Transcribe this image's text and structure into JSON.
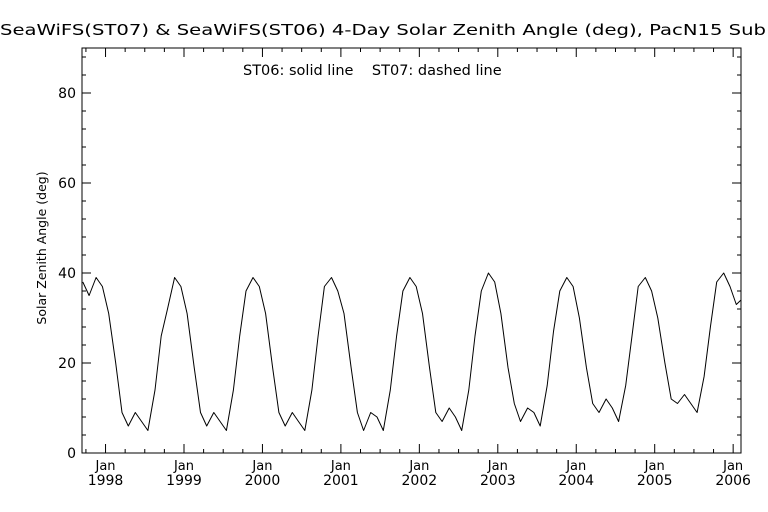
{
  "chart_data": {
    "type": "line",
    "title": "SeaWiFS(ST07) & SeaWiFS(ST06) 4-Day Solar Zenith Angle (deg), PacN15 Sub",
    "annotation": "ST06: solid line    ST07: dashed line",
    "xlabel": "",
    "ylabel": "Solar Zenith Angle (deg)",
    "xlim": [
      1997.7,
      2006.1
    ],
    "ylim": [
      0,
      90
    ],
    "yticks": [
      0,
      20,
      40,
      60,
      80
    ],
    "xticks": [
      {
        "value": 1998,
        "month": "Jan",
        "year": "1998"
      },
      {
        "value": 1999,
        "month": "Jan",
        "year": "1999"
      },
      {
        "value": 2000,
        "month": "Jan",
        "year": "2000"
      },
      {
        "value": 2001,
        "month": "Jan",
        "year": "2001"
      },
      {
        "value": 2002,
        "month": "Jan",
        "year": "2002"
      },
      {
        "value": 2003,
        "month": "Jan",
        "year": "2003"
      },
      {
        "value": 2004,
        "month": "Jan",
        "year": "2004"
      },
      {
        "value": 2005,
        "month": "Jan",
        "year": "2005"
      },
      {
        "value": 2006,
        "month": "Jan",
        "year": "2006"
      }
    ],
    "grid": false,
    "series": [
      {
        "name": "ST06",
        "style": "solid",
        "color": "#000000",
        "x": [
          1997.71,
          1997.79,
          1997.88,
          1997.96,
          1998.04,
          1998.13,
          1998.21,
          1998.29,
          1998.38,
          1998.46,
          1998.54,
          1998.63,
          1998.71,
          1998.79,
          1998.88,
          1998.96,
          1999.04,
          1999.13,
          1999.21,
          1999.29,
          1999.38,
          1999.46,
          1999.54,
          1999.63,
          1999.71,
          1999.79,
          1999.88,
          1999.96,
          2000.04,
          2000.13,
          2000.21,
          2000.29,
          2000.38,
          2000.46,
          2000.54,
          2000.63,
          2000.71,
          2000.79,
          2000.88,
          2000.96,
          2001.04,
          2001.13,
          2001.21,
          2001.29,
          2001.38,
          2001.46,
          2001.54,
          2001.63,
          2001.71,
          2001.79,
          2001.88,
          2001.96,
          2002.04,
          2002.13,
          2002.21,
          2002.29,
          2002.38,
          2002.46,
          2002.54,
          2002.63,
          2002.71,
          2002.79,
          2002.88,
          2002.96,
          2003.04,
          2003.13,
          2003.21,
          2003.29,
          2003.38,
          2003.46,
          2003.54,
          2003.63,
          2003.71,
          2003.79,
          2003.88,
          2003.96,
          2004.04,
          2004.13,
          2004.21,
          2004.29,
          2004.38,
          2004.46,
          2004.54,
          2004.63,
          2004.71,
          2004.79,
          2004.88,
          2004.96,
          2005.04,
          2005.13,
          2005.21,
          2005.29,
          2005.38,
          2005.46,
          2005.54,
          2005.63,
          2005.71,
          2005.79,
          2005.88,
          2005.96,
          2006.04,
          2006.1
        ],
        "values": [
          38,
          35,
          39,
          37,
          31,
          20,
          9,
          6,
          9,
          7,
          5,
          14,
          26,
          32,
          39,
          37,
          31,
          19,
          9,
          6,
          9,
          7,
          5,
          14,
          26,
          36,
          39,
          37,
          31,
          19,
          9,
          6,
          9,
          7,
          5,
          14,
          26,
          37,
          39,
          36,
          31,
          19,
          9,
          5,
          9,
          8,
          5,
          14,
          26,
          36,
          39,
          37,
          31,
          19,
          9,
          7,
          10,
          8,
          5,
          14,
          26,
          36,
          40,
          38,
          31,
          19,
          11,
          7,
          10,
          9,
          6,
          15,
          27,
          36,
          39,
          37,
          30,
          19,
          11,
          9,
          12,
          10,
          7,
          15,
          26,
          37,
          39,
          36,
          30,
          20,
          12,
          11,
          13,
          11,
          9,
          17,
          28,
          38,
          40,
          37,
          33,
          34
        ]
      }
    ]
  }
}
